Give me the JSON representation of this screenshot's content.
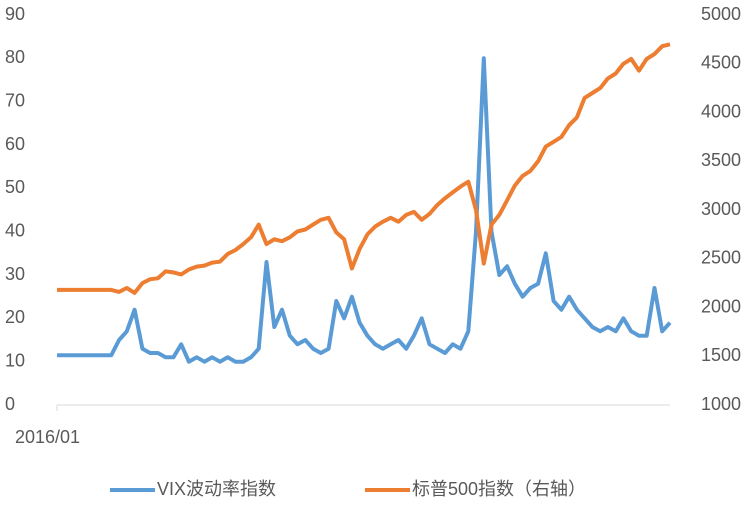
{
  "chart_data": {
    "type": "line",
    "categories": [
      "2016/01",
      null,
      null,
      null,
      null,
      null,
      null,
      null,
      null,
      null,
      null,
      null,
      null,
      null,
      null,
      null,
      null,
      null,
      null,
      null,
      null,
      null,
      null,
      null,
      null,
      null,
      null,
      null,
      null,
      null,
      null,
      null,
      null,
      null,
      null,
      null,
      null,
      null,
      null,
      null,
      null,
      null,
      null,
      null,
      null,
      null,
      null,
      null,
      null,
      null,
      null,
      null,
      null,
      null,
      null,
      null,
      null,
      null,
      null,
      null,
      null,
      null,
      null,
      null,
      null,
      null,
      null,
      null,
      null,
      null,
      null,
      null,
      null,
      null,
      null,
      null,
      null,
      null,
      null,
      null
    ],
    "series": [
      {
        "name": "VIX波动率指数",
        "color": "#5b9bd5",
        "values": [
          11.5,
          11.5,
          11.5,
          11.5,
          11.5,
          11.5,
          11.5,
          11.5,
          15,
          17,
          22,
          13,
          12,
          12,
          11,
          11,
          14,
          10,
          11,
          10,
          11,
          10,
          11,
          10,
          10,
          11,
          13,
          33,
          18,
          22,
          16,
          14,
          15,
          13,
          12,
          13,
          24,
          20,
          25,
          19,
          16,
          14,
          13,
          14,
          15,
          13,
          16,
          20,
          14,
          13,
          12,
          14,
          13,
          17,
          40,
          80,
          40,
          30,
          32,
          28,
          25,
          27,
          28,
          35,
          24,
          22,
          25,
          22,
          20,
          18,
          17,
          18,
          17,
          20,
          17,
          16,
          16,
          27,
          17,
          19
        ]
      },
      {
        "name": "标普500指数（右轴）",
        "color": "#ed7d31",
        "axis": "y2",
        "values": [
          2180,
          2180,
          2180,
          2180,
          2180,
          2180,
          2180,
          2180,
          2160,
          2200,
          2150,
          2250,
          2290,
          2300,
          2370,
          2360,
          2340,
          2390,
          2420,
          2430,
          2460,
          2470,
          2550,
          2590,
          2650,
          2720,
          2850,
          2650,
          2700,
          2680,
          2720,
          2780,
          2800,
          2850,
          2900,
          2920,
          2770,
          2700,
          2400,
          2600,
          2750,
          2830,
          2880,
          2920,
          2880,
          2950,
          2980,
          2900,
          2960,
          3050,
          3120,
          3180,
          3240,
          3290,
          3000,
          2450,
          2850,
          2950,
          3100,
          3250,
          3350,
          3400,
          3500,
          3650,
          3700,
          3750,
          3870,
          3950,
          4150,
          4200,
          4250,
          4350,
          4400,
          4500,
          4550,
          4430,
          4550,
          4600,
          4680,
          4700
        ]
      }
    ],
    "ylim": [
      0,
      90
    ],
    "yticks": [
      0,
      10,
      20,
      30,
      40,
      50,
      60,
      70,
      80,
      90
    ],
    "y2lim": [
      1000,
      5000
    ],
    "y2ticks": [
      1000,
      1500,
      2000,
      2500,
      3000,
      3500,
      4000,
      4500,
      5000
    ],
    "legend": "bottom"
  }
}
